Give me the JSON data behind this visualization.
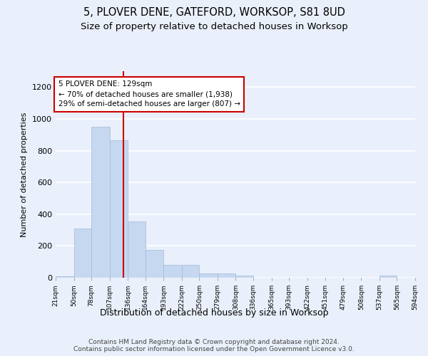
{
  "title": "5, PLOVER DENE, GATEFORD, WORKSOP, S81 8UD",
  "subtitle": "Size of property relative to detached houses in Worksop",
  "xlabel": "Distribution of detached houses by size in Worksop",
  "ylabel": "Number of detached properties",
  "bar_values": [
    10,
    310,
    950,
    865,
    355,
    175,
    80,
    80,
    25,
    25,
    13,
    0,
    0,
    0,
    0,
    0,
    0,
    0,
    12,
    0
  ],
  "bin_edges": [
    21,
    50,
    78,
    107,
    136,
    164,
    193,
    222,
    250,
    279,
    308,
    336,
    365,
    393,
    422,
    451,
    479,
    508,
    537,
    565,
    594
  ],
  "tick_labels": [
    "21sqm",
    "50sqm",
    "78sqm",
    "107sqm",
    "136sqm",
    "164sqm",
    "193sqm",
    "222sqm",
    "250sqm",
    "279sqm",
    "308sqm",
    "336sqm",
    "365sqm",
    "393sqm",
    "422sqm",
    "451sqm",
    "479sqm",
    "508sqm",
    "537sqm",
    "565sqm",
    "594sqm"
  ],
  "bar_color": "#c5d8f0",
  "bar_edge_color": "#a0b8d8",
  "vline_x": 129,
  "vline_color": "#cc0000",
  "annotation_text": "5 PLOVER DENE: 129sqm\n← 70% of detached houses are smaller (1,938)\n29% of semi-detached houses are larger (807) →",
  "annotation_box_color": "#ffffff",
  "annotation_box_edge": "#cc0000",
  "ylim": [
    0,
    1300
  ],
  "yticks": [
    0,
    200,
    400,
    600,
    800,
    1000,
    1200
  ],
  "bg_color": "#eaf0fb",
  "grid_color": "#ffffff",
  "footer": "Contains HM Land Registry data © Crown copyright and database right 2024.\nContains public sector information licensed under the Open Government Licence v3.0.",
  "title_fontsize": 10.5,
  "subtitle_fontsize": 9.5,
  "title_fontweight": "normal"
}
